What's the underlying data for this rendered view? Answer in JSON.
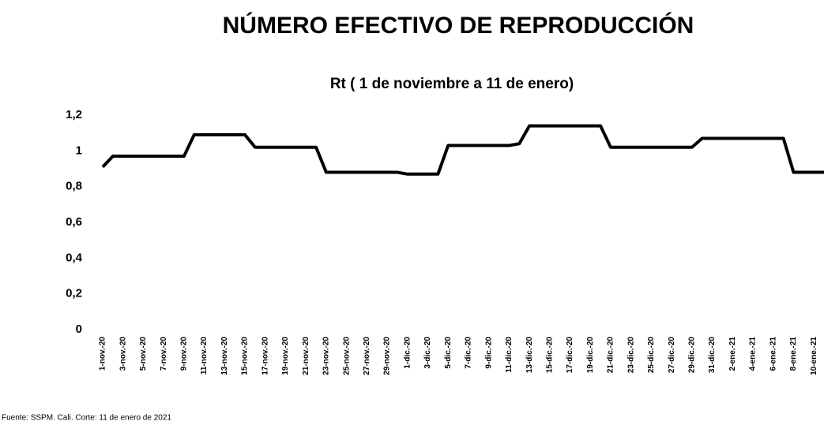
{
  "chart_data": {
    "type": "line",
    "title": "NÚMERO EFECTIVO DE REPRODUCCIÓN",
    "subtitle": "Rt ( 1 de noviembre a 11 de enero)",
    "source": "Fuente: SSPM. Cali. Corte: 11 de enero de 2021",
    "categories": [
      "1-nov.-20",
      null,
      "3-nov.-20",
      null,
      "5-nov.-20",
      null,
      "7-nov.-20",
      null,
      "9-nov.-20",
      null,
      "11-nov.-20",
      null,
      "13-nov.-20",
      null,
      "15-nov.-20",
      null,
      "17-nov.-20",
      null,
      "19-nov.-20",
      null,
      "21-nov.-20",
      null,
      "23-nov.-20",
      null,
      "25-nov.-20",
      null,
      "27-nov.-20",
      null,
      "29-nov.-20",
      null,
      "1-dic.-20",
      null,
      "3-dic.-20",
      null,
      "5-dic.-20",
      null,
      "7-dic.-20",
      null,
      "9-dic.-20",
      null,
      "11-dic.-20",
      null,
      "13-dic.-20",
      null,
      "15-dic.-20",
      null,
      "17-dic.-20",
      null,
      "19-dic.-20",
      null,
      "21-dic.-20",
      null,
      "23-dic.-20",
      null,
      "25-dic.-20",
      null,
      "27-dic.-20",
      null,
      "29-dic.-20",
      null,
      "31-dic.-20",
      null,
      "2-ene.-21",
      null,
      "4-ene.-21",
      null,
      "6-ene.-21",
      null,
      "8-ene.-21",
      null,
      "10-ene.-21",
      null
    ],
    "series": [
      {
        "name": "Rt",
        "color": "#000000",
        "values": [
          0.91,
          0.97,
          0.97,
          0.97,
          0.97,
          0.97,
          0.97,
          0.97,
          0.97,
          1.09,
          1.09,
          1.09,
          1.09,
          1.09,
          1.09,
          1.02,
          1.02,
          1.02,
          1.02,
          1.02,
          1.02,
          1.02,
          0.88,
          0.88,
          0.88,
          0.88,
          0.88,
          0.88,
          0.88,
          0.88,
          0.87,
          0.87,
          0.87,
          0.87,
          1.03,
          1.03,
          1.03,
          1.03,
          1.03,
          1.03,
          1.03,
          1.04,
          1.14,
          1.14,
          1.14,
          1.14,
          1.14,
          1.14,
          1.14,
          1.14,
          1.02,
          1.02,
          1.02,
          1.02,
          1.02,
          1.02,
          1.02,
          1.02,
          1.02,
          1.07,
          1.07,
          1.07,
          1.07,
          1.07,
          1.07,
          1.07,
          1.07,
          1.07,
          0.88,
          0.88,
          0.88,
          0.88
        ]
      }
    ],
    "ylim": [
      0,
      1.2
    ],
    "yticks": [
      0,
      {
        "value": 0.2,
        "label": "0,2"
      },
      {
        "value": 0.4,
        "label": "0,4"
      },
      {
        "value": 0.6,
        "label": "0,6"
      },
      {
        "value": 0.8,
        "label": "0,8"
      },
      1,
      {
        "value": 1.2,
        "label": "1,2"
      }
    ],
    "grid": false
  }
}
